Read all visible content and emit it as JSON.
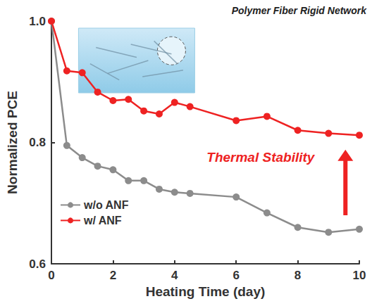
{
  "chart_data": {
    "type": "line",
    "x_label": "Heating Time (day)",
    "y_label": "Normalized PCE",
    "x": [
      0,
      0.5,
      1,
      1.5,
      2,
      2.5,
      3,
      3.5,
      4,
      4.5,
      6,
      7,
      8,
      9,
      10
    ],
    "series": [
      {
        "name": "w/o ANF",
        "color": "#8c8c8c",
        "marker": "circle",
        "line_style": "solid",
        "values": [
          1.0,
          0.795,
          0.775,
          0.761,
          0.755,
          0.737,
          0.737,
          0.723,
          0.718,
          0.716,
          0.71,
          0.684,
          0.66,
          0.652,
          0.657
        ]
      },
      {
        "name": "w/ ANF",
        "color": "#ee2222",
        "marker": "circle",
        "line_style": "solid",
        "values": [
          1.0,
          0.918,
          0.915,
          0.883,
          0.869,
          0.871,
          0.852,
          0.847,
          0.866,
          0.859,
          0.836,
          0.843,
          0.82,
          0.815,
          0.812
        ]
      }
    ],
    "xlim": [
      0,
      10
    ],
    "xticks": [
      0,
      2,
      4,
      6,
      8,
      10
    ],
    "ylim": [
      0.6,
      1
    ],
    "yticks": [
      0.6,
      0.8,
      {
        "value": 1,
        "label": "1.0"
      }
    ],
    "grid": false,
    "legend": "lower left",
    "annotations": [
      "Polymer Fiber Rigid Network",
      "Thermal Stability"
    ]
  }
}
